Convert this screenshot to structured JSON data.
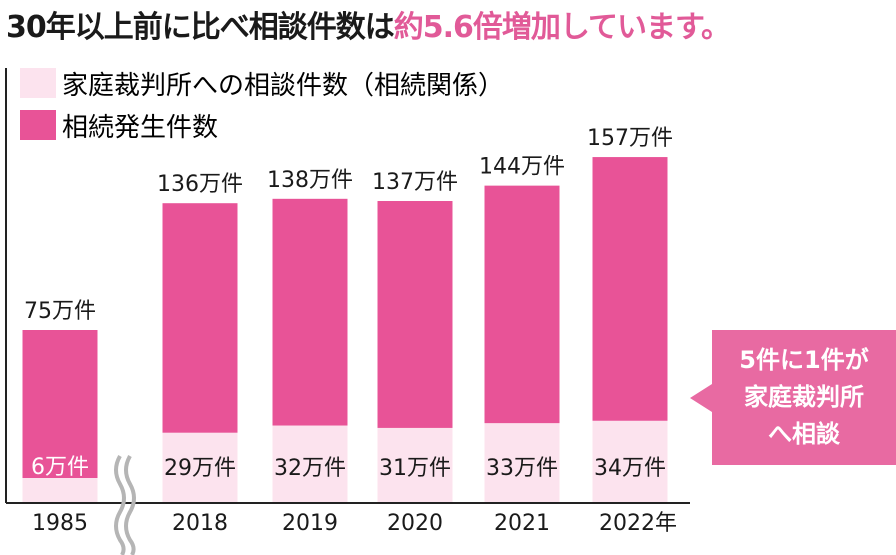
{
  "title": {
    "prefix": "30年以上前に比べ相談件数は",
    "accent": "約5.6倍増加しています。"
  },
  "legend": [
    {
      "label": "家庭裁判所への相談件数（相続関係）",
      "color": "#fce3ee"
    },
    {
      "label": "相続発生件数",
      "color": "#e85397"
    }
  ],
  "callout": {
    "lines": [
      "5件に1件が",
      "家庭裁判所",
      "へ相談"
    ],
    "color": "#e86aa2"
  },
  "chart_data": {
    "type": "bar",
    "stacked": true,
    "axis_break_after": "1985",
    "categories": [
      "1985",
      "2018",
      "2019",
      "2020",
      "2021",
      "2022年"
    ],
    "series": [
      {
        "name": "家庭裁判所への相談件数（相続関係）",
        "color": "#fce3ee",
        "values": [
          6,
          29,
          32,
          31,
          33,
          34
        ],
        "labels": [
          "6万件",
          "29万件",
          "32万件",
          "31万件",
          "33万件",
          "34万件"
        ]
      },
      {
        "name": "相続発生件数",
        "color": "#e85397",
        "values": [
          75,
          136,
          138,
          137,
          144,
          157
        ],
        "labels": [
          "75万件",
          "136万件",
          "138万件",
          "137万件",
          "144万件",
          "157万件"
        ]
      }
    ],
    "ylim": [
      0,
      190
    ]
  }
}
